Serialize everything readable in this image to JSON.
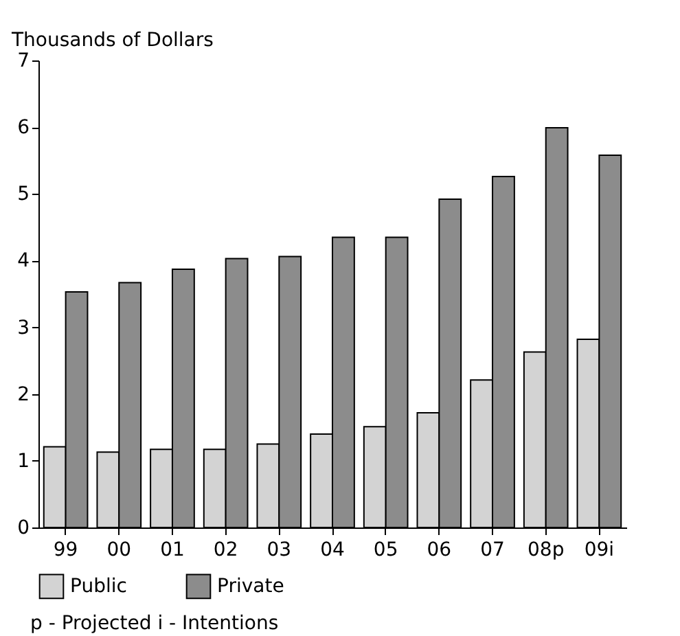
{
  "chart_data": {
    "type": "bar",
    "ylabel": "Thousands of Dollars",
    "categories": [
      "99",
      "00",
      "01",
      "02",
      "03",
      "04",
      "05",
      "06",
      "07",
      "08p",
      "09i"
    ],
    "series": [
      {
        "name": "Public",
        "color": "#d3d3d3",
        "values": [
          1.21,
          1.13,
          1.17,
          1.17,
          1.25,
          1.4,
          1.51,
          1.72,
          2.21,
          2.63,
          2.82
        ]
      },
      {
        "name": "Private",
        "color": "#8c8c8c",
        "values": [
          3.53,
          3.67,
          3.87,
          4.03,
          4.06,
          4.35,
          4.35,
          4.92,
          5.26,
          5.99,
          5.58
        ]
      }
    ],
    "ylim": [
      0,
      7
    ],
    "yticks": [
      0,
      1,
      2,
      3,
      4,
      5,
      6,
      7
    ],
    "grid": false,
    "legend": "bottom left",
    "annotations": [
      "p - Projected   i - Intentions"
    ]
  }
}
